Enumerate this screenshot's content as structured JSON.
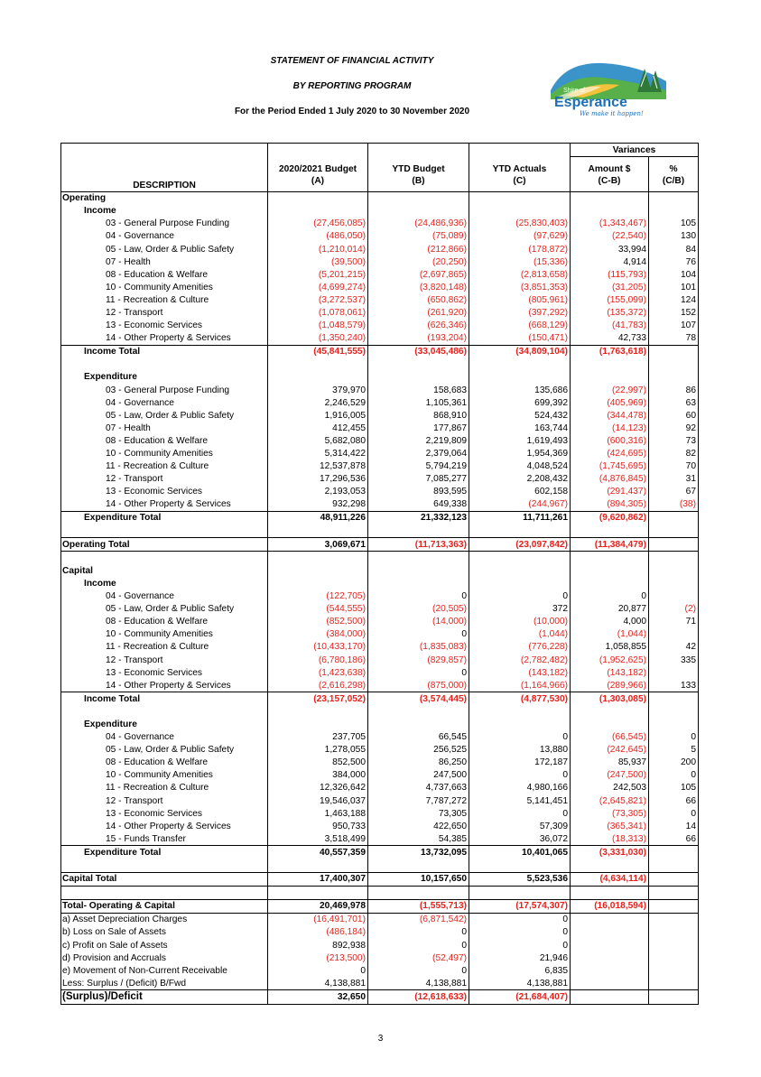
{
  "header": {
    "title": "STATEMENT OF FINANCIAL ACTIVITY",
    "subtitle": "BY REPORTING PROGRAM",
    "period": "For the Period Ended 1 July 2020 to 30 November 2020"
  },
  "logo": {
    "line1": "Shire of",
    "line2": "Esperance",
    "tagline": "We make it happen!"
  },
  "columns": {
    "variances": "Variances",
    "budget": "2020/2021 Budget",
    "budget_sub": "(A)",
    "ytd_budget": "YTD Budget",
    "ytd_budget_sub": "(B)",
    "ytd_actuals": "YTD Actuals",
    "ytd_actuals_sub": "(C)",
    "amount": "Amount $",
    "amount_sub": "(C-B)",
    "pct": "%",
    "pct_sub": "(C/B)",
    "description": "DESCRIPTION"
  },
  "rows": [
    {
      "t": "l0",
      "label": "Operating",
      "bt": true
    },
    {
      "t": "l1",
      "label": "Income"
    },
    {
      "t": "l2",
      "label": "03 - General Purpose Funding",
      "v": [
        "(27,456,085)",
        "(24,486,936)",
        "(25,830,403)",
        "(1,343,467)",
        "105"
      ]
    },
    {
      "t": "l2",
      "label": "04 - Governance",
      "v": [
        "(486,050)",
        "(75,089)",
        "(97,629)",
        "(22,540)",
        "130"
      ]
    },
    {
      "t": "l2",
      "label": "05 - Law, Order & Public Safety",
      "v": [
        "(1,210,014)",
        "(212,866)",
        "(178,872)",
        "33,994",
        "84"
      ]
    },
    {
      "t": "l2",
      "label": "07 - Health",
      "v": [
        "(39,500)",
        "(20,250)",
        "(15,336)",
        "4,914",
        "76"
      ]
    },
    {
      "t": "l2",
      "label": "08 - Education & Welfare",
      "v": [
        "(5,201,215)",
        "(2,697,865)",
        "(2,813,658)",
        "(115,793)",
        "104"
      ]
    },
    {
      "t": "l2",
      "label": "10 - Community Amenities",
      "v": [
        "(4,699,274)",
        "(3,820,148)",
        "(3,851,353)",
        "(31,205)",
        "101"
      ]
    },
    {
      "t": "l2",
      "label": "11 - Recreation & Culture",
      "v": [
        "(3,272,537)",
        "(650,862)",
        "(805,961)",
        "(155,099)",
        "124"
      ]
    },
    {
      "t": "l2",
      "label": "12 - Transport",
      "v": [
        "(1,078,061)",
        "(261,920)",
        "(397,292)",
        "(135,372)",
        "152"
      ]
    },
    {
      "t": "l2",
      "label": "13 - Economic Services",
      "v": [
        "(1,048,579)",
        "(626,346)",
        "(668,129)",
        "(41,783)",
        "107"
      ]
    },
    {
      "t": "l2",
      "label": "14 - Other Property & Services",
      "v": [
        "(1,350,240)",
        "(193,204)",
        "(150,471)",
        "42,733",
        "78"
      ]
    },
    {
      "t": "tot",
      "label": "Income Total",
      "bt": true,
      "v": [
        "(45,841,555)",
        "(33,045,486)",
        "(34,809,104)",
        "(1,763,618)",
        ""
      ]
    },
    {
      "t": "blank"
    },
    {
      "t": "l1",
      "label": "Expenditure"
    },
    {
      "t": "l2",
      "label": "03 - General Purpose Funding",
      "v": [
        "379,970",
        "158,683",
        "135,686",
        "(22,997)",
        "86"
      ]
    },
    {
      "t": "l2",
      "label": "04 - Governance",
      "v": [
        "2,246,529",
        "1,105,361",
        "699,392",
        "(405,969)",
        "63"
      ]
    },
    {
      "t": "l2",
      "label": "05 - Law, Order & Public Safety",
      "v": [
        "1,916,005",
        "868,910",
        "524,432",
        "(344,478)",
        "60"
      ]
    },
    {
      "t": "l2",
      "label": "07 - Health",
      "v": [
        "412,455",
        "177,867",
        "163,744",
        "(14,123)",
        "92"
      ]
    },
    {
      "t": "l2",
      "label": "08 - Education & Welfare",
      "v": [
        "5,682,080",
        "2,219,809",
        "1,619,493",
        "(600,316)",
        "73"
      ]
    },
    {
      "t": "l2",
      "label": "10 - Community Amenities",
      "v": [
        "5,314,422",
        "2,379,064",
        "1,954,369",
        "(424,695)",
        "82"
      ]
    },
    {
      "t": "l2",
      "label": "11 - Recreation & Culture",
      "v": [
        "12,537,878",
        "5,794,219",
        "4,048,524",
        "(1,745,695)",
        "70"
      ]
    },
    {
      "t": "l2",
      "label": "12 - Transport",
      "v": [
        "17,296,536",
        "7,085,277",
        "2,208,432",
        "(4,876,845)",
        "31"
      ]
    },
    {
      "t": "l2",
      "label": "13 - Economic Services",
      "v": [
        "2,193,053",
        "893,595",
        "602,158",
        "(291,437)",
        "67"
      ]
    },
    {
      "t": "l2",
      "label": "14 - Other Property & Services",
      "v": [
        "932,298",
        "649,338",
        "(244,967)",
        "(894,305)",
        "(38)"
      ]
    },
    {
      "t": "tot",
      "label": "Expenditure Total",
      "bt": true,
      "v": [
        "48,911,226",
        "21,332,123",
        "11,711,261",
        "(9,620,862)",
        ""
      ]
    },
    {
      "t": "blank"
    },
    {
      "t": "gtot",
      "label": "Operating Total",
      "bt": true,
      "bb": true,
      "v": [
        "3,069,671",
        "(11,713,363)",
        "(23,097,842)",
        "(11,384,479)",
        ""
      ]
    },
    {
      "t": "blank"
    },
    {
      "t": "l0",
      "label": "Capital"
    },
    {
      "t": "l1",
      "label": "Income"
    },
    {
      "t": "l2",
      "label": "04 - Governance",
      "v": [
        "(122,705)",
        "0",
        "0",
        "0",
        ""
      ]
    },
    {
      "t": "l2",
      "label": "05 - Law, Order & Public Safety",
      "v": [
        "(544,555)",
        "(20,505)",
        "372",
        "20,877",
        "(2)"
      ]
    },
    {
      "t": "l2",
      "label": "08 - Education & Welfare",
      "v": [
        "(852,500)",
        "(14,000)",
        "(10,000)",
        "4,000",
        "71"
      ]
    },
    {
      "t": "l2",
      "label": "10 - Community Amenities",
      "v": [
        "(384,000)",
        "0",
        "(1,044)",
        "(1,044)",
        ""
      ]
    },
    {
      "t": "l2",
      "label": "11 - Recreation & Culture",
      "v": [
        "(10,433,170)",
        "(1,835,083)",
        "(776,228)",
        "1,058,855",
        "42"
      ]
    },
    {
      "t": "l2",
      "label": "12 - Transport",
      "v": [
        "(6,780,186)",
        "(829,857)",
        "(2,782,482)",
        "(1,952,625)",
        "335"
      ]
    },
    {
      "t": "l2",
      "label": "13 - Economic Services",
      "v": [
        "(1,423,638)",
        "0",
        "(143,182)",
        "(143,182)",
        ""
      ]
    },
    {
      "t": "l2",
      "label": "14 - Other Property & Services",
      "v": [
        "(2,616,298)",
        "(875,000)",
        "(1,164,966)",
        "(289,966)",
        "133"
      ]
    },
    {
      "t": "tot",
      "label": "Income Total",
      "bt": true,
      "v": [
        "(23,157,052)",
        "(3,574,445)",
        "(4,877,530)",
        "(1,303,085)",
        ""
      ]
    },
    {
      "t": "blank"
    },
    {
      "t": "l1",
      "label": "Expenditure"
    },
    {
      "t": "l2",
      "label": "04 - Governance",
      "v": [
        "237,705",
        "66,545",
        "0",
        "(66,545)",
        "0"
      ]
    },
    {
      "t": "l2",
      "label": "05 - Law, Order & Public Safety",
      "v": [
        "1,278,055",
        "256,525",
        "13,880",
        "(242,645)",
        "5"
      ]
    },
    {
      "t": "l2",
      "label": "08 - Education & Welfare",
      "v": [
        "852,500",
        "86,250",
        "172,187",
        "85,937",
        "200"
      ]
    },
    {
      "t": "l2",
      "label": "10 - Community Amenities",
      "v": [
        "384,000",
        "247,500",
        "0",
        "(247,500)",
        "0"
      ]
    },
    {
      "t": "l2",
      "label": "11 - Recreation & Culture",
      "v": [
        "12,326,642",
        "4,737,663",
        "4,980,166",
        "242,503",
        "105"
      ]
    },
    {
      "t": "l2",
      "label": "12 - Transport",
      "v": [
        "19,546,037",
        "7,787,272",
        "5,141,451",
        "(2,645,821)",
        "66"
      ]
    },
    {
      "t": "l2",
      "label": "13 - Economic Services",
      "v": [
        "1,463,188",
        "73,305",
        "0",
        "(73,305)",
        "0"
      ]
    },
    {
      "t": "l2",
      "label": "14 - Other Property & Services",
      "v": [
        "950,733",
        "422,650",
        "57,309",
        "(365,341)",
        "14"
      ]
    },
    {
      "t": "l2",
      "label": "15 - Funds Transfer",
      "v": [
        "3,518,499",
        "54,385",
        "36,072",
        "(18,313)",
        "66"
      ]
    },
    {
      "t": "tot",
      "label": "Expenditure Total",
      "bt": true,
      "v": [
        "40,557,359",
        "13,732,095",
        "10,401,065",
        "(3,331,030)",
        ""
      ]
    },
    {
      "t": "blank"
    },
    {
      "t": "gtot",
      "label": "Capital Total",
      "bt": true,
      "bb": true,
      "v": [
        "17,400,307",
        "10,157,650",
        "5,523,536",
        "(4,634,114)",
        ""
      ]
    },
    {
      "t": "blank"
    },
    {
      "t": "gtot",
      "label": "Total- Operating & Capital",
      "bt": true,
      "v": [
        "20,469,978",
        "(1,555,713)",
        "(17,574,307)",
        "(16,018,594)",
        ""
      ]
    },
    {
      "t": "fl",
      "label": "a) Asset Depreciation Charges",
      "bt": true,
      "v": [
        "(16,491,701)",
        "(6,871,542)",
        "0",
        "",
        ""
      ]
    },
    {
      "t": "fl",
      "label": "b) Loss on Sale of Assets",
      "v": [
        "(486,184)",
        "0",
        "0",
        "",
        ""
      ]
    },
    {
      "t": "fl",
      "label": "c) Profit on Sale of Assets",
      "v": [
        "892,938",
        "0",
        "0",
        "",
        ""
      ]
    },
    {
      "t": "fl",
      "label": "d) Provision and Accruals",
      "v": [
        "(213,500)",
        "(52,497)",
        "21,946",
        "",
        ""
      ]
    },
    {
      "t": "fl",
      "label": "e) Movement of Non-Current Receivable",
      "v": [
        "0",
        "0",
        "6,835",
        "",
        ""
      ]
    },
    {
      "t": "fl",
      "label": "Less: Surplus / (Deficit) B/Fwd",
      "v": [
        "4,138,881",
        "4,138,881",
        "4,138,881",
        "",
        ""
      ]
    },
    {
      "t": "gtot",
      "label": "(Surplus)/Deficit",
      "bt": true,
      "bb": true,
      "big": true,
      "v": [
        "32,650",
        "(12,618,633)",
        "(21,684,407)",
        "",
        ""
      ]
    }
  ],
  "page_number": "3"
}
